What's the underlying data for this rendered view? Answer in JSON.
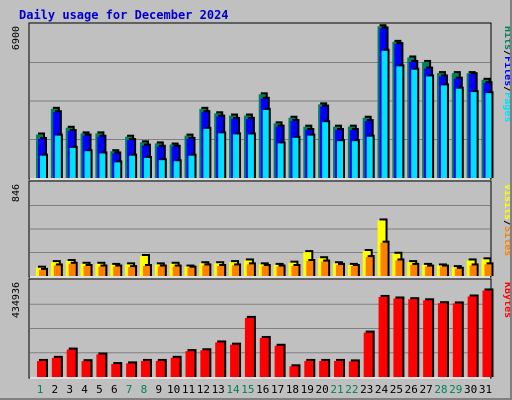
{
  "chart_data": {
    "type": "bar",
    "title": "Daily usage for December 2024",
    "x": [
      "1",
      "2",
      "3",
      "4",
      "5",
      "6",
      "7",
      "8",
      "9",
      "10",
      "11",
      "12",
      "13",
      "14",
      "15",
      "16",
      "17",
      "18",
      "19",
      "20",
      "21",
      "22",
      "23",
      "24",
      "25",
      "26",
      "27",
      "28",
      "29",
      "30",
      "31"
    ],
    "weekend_days": [
      1,
      7,
      8,
      14,
      15,
      21,
      22,
      28,
      29
    ],
    "colors": {
      "hits": "#00805c",
      "files": "#0000ff",
      "pages": "#00e0ff",
      "visits": "#ffff00",
      "sites": "#ff8000",
      "kbytes": "#ff0000",
      "weekday_tick": "#000000",
      "weekend_tick": "#00805c",
      "background": "#c0c0c0"
    },
    "panels": [
      {
        "id": "requests",
        "max_label": "6900",
        "ylim": [
          0,
          6900
        ],
        "labels": [
          {
            "text": "Hits",
            "color": "#00805c"
          },
          {
            "text": "/",
            "color": "#000000"
          },
          {
            "text": "Files",
            "color": "#0000ff"
          },
          {
            "text": "/",
            "color": "#000000"
          },
          {
            "text": "Pages",
            "color": "#00e0ff"
          }
        ],
        "series": [
          {
            "name": "Hits",
            "color": "#00805c",
            "values": [
              1950,
              3100,
              2250,
              2000,
              2000,
              1200,
              1850,
              1600,
              1550,
              1500,
              1900,
              3100,
              2900,
              2800,
              2800,
              3750,
              2450,
              2700,
              2300,
              3300,
              2300,
              2300,
              2700,
              6800,
              6100,
              5400,
              5200,
              4700,
              4700,
              4700,
              4400
            ]
          },
          {
            "name": "Files",
            "color": "#0000ff",
            "values": [
              1750,
              2950,
              2100,
              1900,
              1850,
              1100,
              1700,
              1450,
              1400,
              1400,
              1750,
              2950,
              2750,
              2650,
              2650,
              3550,
              2300,
              2550,
              2150,
              3200,
              2150,
              2150,
              2550,
              6700,
              6000,
              5200,
              4900,
              4550,
              4450,
              4650,
              4250
            ]
          },
          {
            "name": "Pages",
            "color": "#00e0ff",
            "values": [
              1000,
              1900,
              1350,
              1200,
              1100,
              700,
              1000,
              900,
              800,
              750,
              1000,
              2200,
              2000,
              1950,
              1950,
              3050,
              1550,
              1800,
              1900,
              2500,
              1650,
              1650,
              1850,
              5700,
              5000,
              4850,
              4550,
              4150,
              4000,
              3850,
              3800
            ]
          }
        ]
      },
      {
        "id": "visitors",
        "max_label": "846",
        "ylim": [
          0,
          846
        ],
        "labels": [
          {
            "text": "Visits",
            "color": "#ffff00"
          },
          {
            "text": "/",
            "color": "#000000"
          },
          {
            "text": "Sites",
            "color": "#ff8000"
          }
        ],
        "series": [
          {
            "name": "Visits",
            "color": "#ffff00",
            "values": [
              75,
              125,
              135,
              110,
              110,
              100,
              105,
              180,
              105,
              110,
              85,
              115,
              115,
              125,
              140,
              105,
              100,
              120,
              215,
              160,
              115,
              100,
              225,
              500,
              200,
              125,
              100,
              95,
              80,
              140,
              150
            ]
          },
          {
            "name": "Sites",
            "color": "#ff8000",
            "values": [
              55,
              95,
              110,
              90,
              85,
              85,
              80,
              90,
              85,
              85,
              75,
              95,
              90,
              95,
              105,
              90,
              85,
              90,
              135,
              130,
              100,
              90,
              170,
              300,
              140,
              100,
              85,
              85,
              65,
              95,
              105
            ]
          }
        ]
      },
      {
        "id": "volume",
        "max_label": "434936",
        "ylim": [
          0,
          434936
        ],
        "labels": [
          {
            "text": "KBytes",
            "color": "#ff0000"
          }
        ],
        "series": [
          {
            "name": "KBytes",
            "color": "#ff0000",
            "values": [
              72000,
              86000,
              123000,
              71000,
              101000,
              58000,
              61000,
              72000,
              72000,
              86000,
              116000,
              120000,
              155000,
              145000,
              265000,
              175000,
              140000,
              48000,
              72000,
              72000,
              72000,
              70000,
              199000,
              359000,
              352000,
              349000,
              344000,
              331000,
              330000,
              361000,
              388000
            ]
          }
        ]
      }
    ]
  }
}
